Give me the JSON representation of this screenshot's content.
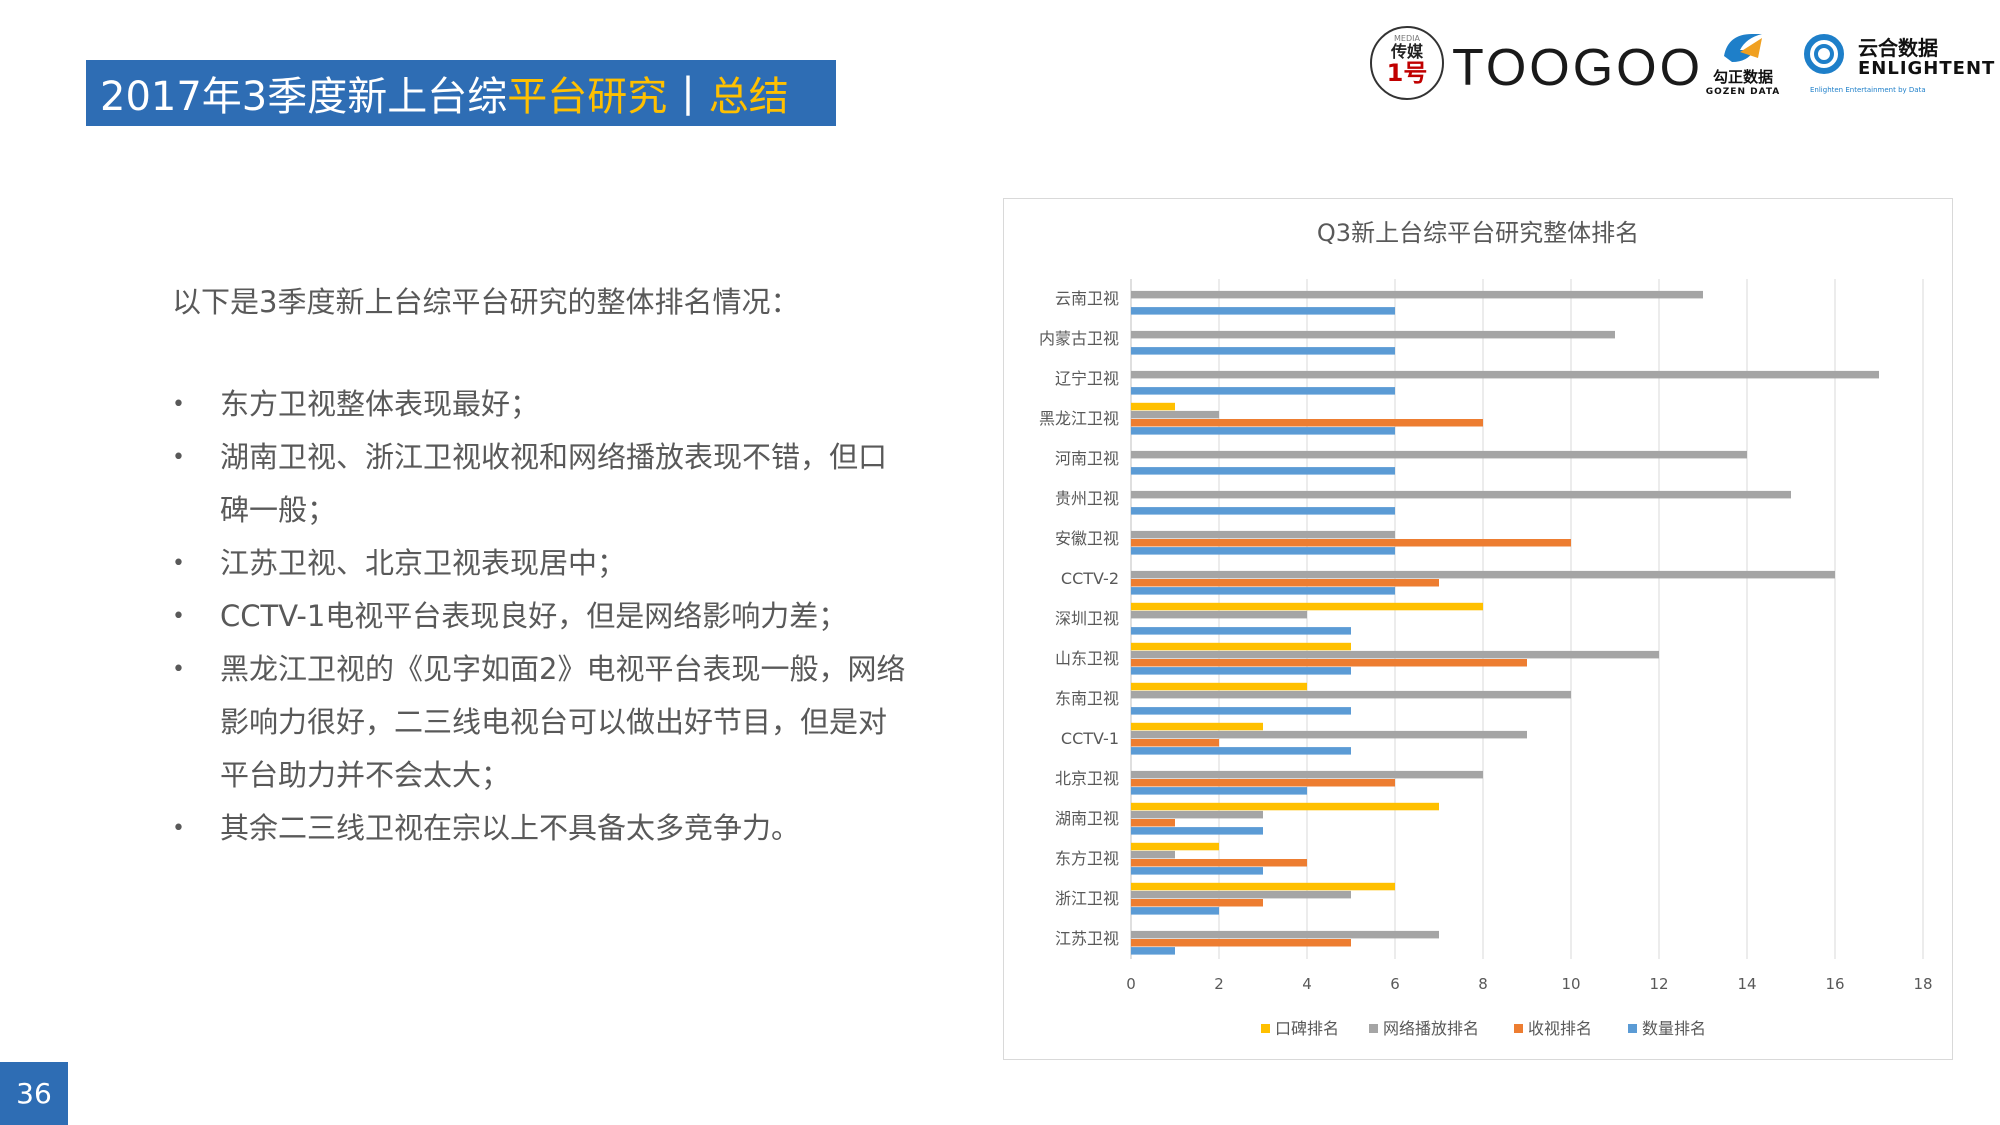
{
  "header": {
    "title_part1": "2017年3季度新上台综",
    "title_part2": "平台研究",
    "separator": "|",
    "title_part3": "总结"
  },
  "logos": {
    "chuanmei_small": "MEDIA",
    "chuanmei_cn": "传媒",
    "chuanmei_num": "1号",
    "toogoo": "TOOGOO",
    "gozen_cn": "勾正数据",
    "gozen_en": "GOZEN DATA",
    "enlight_cn": "云合数据",
    "enlight_en": "ENLIGHTENT",
    "enlight_sub": "Enlighten Entertainment by Data"
  },
  "content": {
    "intro": "以下是3季度新上台综平台研究的整体排名情况：",
    "bullet_symbol": "•",
    "bullets": [
      "东方卫视整体表现最好；",
      "湖南卫视、浙江卫视收视和网络播放表现不错，但口碑一般；",
      "江苏卫视、北京卫视表现居中；",
      "CCTV-1电视平台表现良好，但是网络影响力差；",
      "黑龙江卫视的《见字如面2》电视平台表现一般，网络影响力很好，二三线电视台可以做出好节目，但是对平台助力并不会太大；",
      "其余二三线卫视在宗以上不具备太多竞争力。"
    ]
  },
  "page_number": "36",
  "chart_data": {
    "type": "bar",
    "orientation": "horizontal",
    "title": "Q3新上台综平台研究整体排名",
    "categories": [
      "云南卫视",
      "内蒙古卫视",
      "辽宁卫视",
      "黑龙江卫视",
      "河南卫视",
      "贵州卫视",
      "安徽卫视",
      "CCTV-2",
      "深圳卫视",
      "山东卫视",
      "东南卫视",
      "CCTV-1",
      "北京卫视",
      "湖南卫视",
      "东方卫视",
      "浙江卫视",
      "江苏卫视"
    ],
    "series": [
      {
        "name": "口碑排名",
        "color": "#ffc000",
        "values": [
          0,
          0,
          0,
          1,
          0,
          0,
          0,
          0,
          8,
          5,
          4,
          3,
          0,
          7,
          2,
          6,
          0
        ]
      },
      {
        "name": "网络播放排名",
        "color": "#a5a5a5",
        "values": [
          13,
          11,
          17,
          2,
          14,
          15,
          6,
          16,
          4,
          12,
          10,
          9,
          8,
          3,
          1,
          5,
          7
        ]
      },
      {
        "name": "收视排名",
        "color": "#ed7d31",
        "values": [
          0,
          0,
          0,
          8,
          0,
          0,
          10,
          7,
          0,
          9,
          0,
          2,
          6,
          1,
          4,
          3,
          5
        ]
      },
      {
        "name": "数量排名",
        "color": "#5b9bd5",
        "values": [
          6,
          6,
          6,
          6,
          6,
          6,
          6,
          6,
          5,
          5,
          5,
          5,
          4,
          3,
          3,
          2,
          1
        ]
      }
    ],
    "xlim": [
      0,
      18
    ],
    "xticks": [
      "0",
      "2",
      "4",
      "6",
      "8",
      "10",
      "12",
      "14",
      "16",
      "18"
    ],
    "legend_position": "bottom",
    "grid": true
  }
}
